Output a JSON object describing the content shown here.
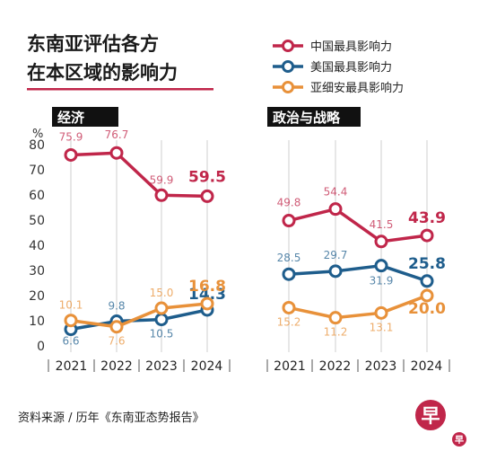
{
  "title": [
    "东南亚评估各方",
    "在本区域的影响力"
  ],
  "legend": [
    "中国最具影响力",
    "美国最具影响力",
    "亚细安最具影响力"
  ],
  "source": "资料来源 / 历年《东南亚态势报告》",
  "logo": {
    "text": "早",
    "small_text": "早"
  },
  "colors": {
    "china": "#c0264a",
    "usa": "#1e5d8c",
    "asean": "#e8913a",
    "title_rule": "#c0264a"
  },
  "chart_data": [
    {
      "type": "line",
      "title": "经济",
      "ylabel": "%",
      "ylim": [
        0,
        80
      ],
      "yticks": [
        "0",
        "10",
        "20",
        "30",
        "40",
        "50",
        "60",
        "70",
        "80"
      ],
      "x": [
        "2021",
        "2022",
        "2023",
        "2024"
      ],
      "series": [
        {
          "name": "中国最具影响力",
          "values": [
            75.9,
            76.7,
            59.9,
            59.5
          ],
          "labels": [
            "75.9",
            "76.7",
            "59.9",
            "59.5"
          ]
        },
        {
          "name": "美国最具影响力",
          "values": [
            6.6,
            9.8,
            10.5,
            14.3
          ],
          "labels": [
            "6.6",
            "9.8",
            "10.5",
            "14.3"
          ]
        },
        {
          "name": "亚细安最具影响力",
          "values": [
            10.1,
            7.6,
            15.0,
            16.8
          ],
          "labels": [
            "10.1",
            "7.6",
            "15.0",
            "16.8"
          ]
        }
      ]
    },
    {
      "type": "line",
      "title": "政治与战略",
      "ylim": [
        0,
        80
      ],
      "x": [
        "2021",
        "2022",
        "2023",
        "2024"
      ],
      "series": [
        {
          "name": "中国最具影响力",
          "values": [
            49.8,
            54.4,
            41.5,
            43.9
          ],
          "labels": [
            "49.8",
            "54.4",
            "41.5",
            "43.9"
          ]
        },
        {
          "name": "美国最具影响力",
          "values": [
            28.5,
            29.7,
            31.9,
            25.8
          ],
          "labels": [
            "28.5",
            "29.7",
            "31.9",
            "25.8"
          ]
        },
        {
          "name": "亚细安最具影响力",
          "values": [
            15.2,
            11.2,
            13.1,
            20.0
          ],
          "labels": [
            "15.2",
            "11.2",
            "13.1",
            "20.0"
          ]
        }
      ]
    }
  ]
}
